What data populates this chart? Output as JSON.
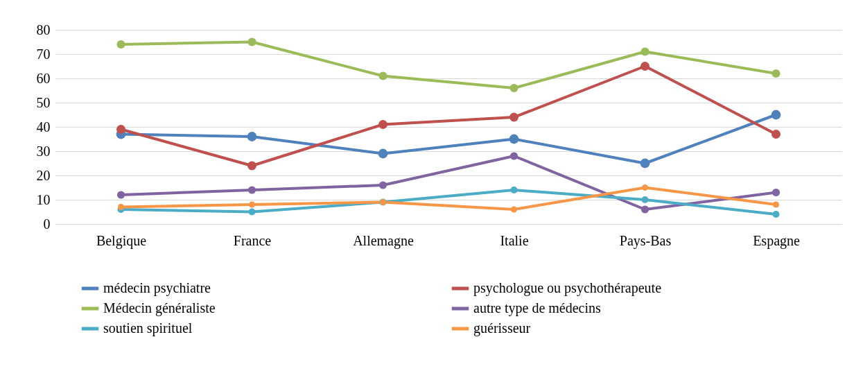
{
  "chart_data": {
    "type": "line",
    "categories": [
      "Belgique",
      "France",
      "Allemagne",
      "Italie",
      "Pays-Bas",
      "Espagne"
    ],
    "series": [
      {
        "name": "médecin psychiatre",
        "color": "#4f81bd",
        "values": [
          37,
          36,
          29,
          35,
          25,
          45
        ]
      },
      {
        "name": "psychologue ou psychothérapeute",
        "color": "#c0504d",
        "values": [
          39,
          24,
          41,
          44,
          65,
          37
        ]
      },
      {
        "name": "Médecin généraliste",
        "color": "#9bbb59",
        "values": [
          74,
          75,
          61,
          56,
          71,
          62
        ]
      },
      {
        "name": "autre type de médecins",
        "color": "#8064a2",
        "values": [
          12,
          14,
          16,
          28,
          6,
          13
        ]
      },
      {
        "name": "soutien spirituel",
        "color": "#4bacc6",
        "values": [
          6,
          5,
          9,
          14,
          10,
          4
        ]
      },
      {
        "name": "guérisseur",
        "color": "#f79646",
        "values": [
          7,
          8,
          9,
          6,
          15,
          8
        ]
      }
    ],
    "ylim": [
      0,
      80
    ],
    "yticks": [
      0,
      10,
      20,
      30,
      40,
      50,
      60,
      70,
      80
    ],
    "grid": "y",
    "legend": "bottom",
    "marker": "circle",
    "line_style": "solid"
  }
}
